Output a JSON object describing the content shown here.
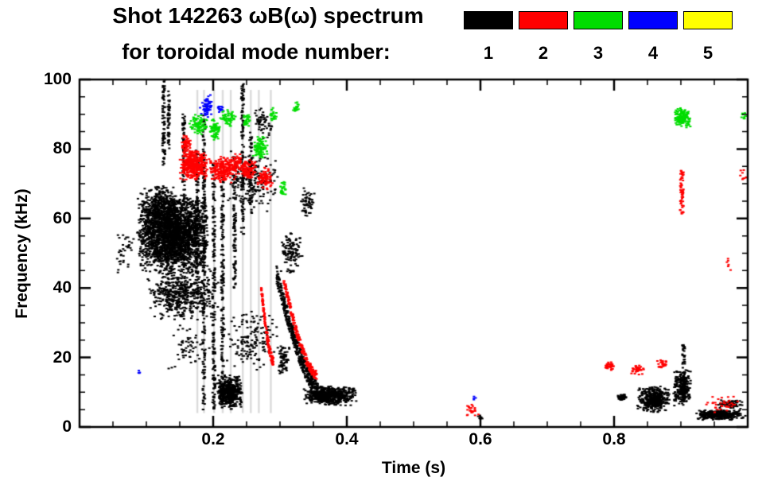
{
  "header": {
    "title_line1": "Shot 142263 ωB(ω) spectrum",
    "title_line2": "for toroidal mode number:"
  },
  "legend": {
    "items": [
      {
        "label": "1",
        "color": "#000000"
      },
      {
        "label": "2",
        "color": "#ff0000"
      },
      {
        "label": "3",
        "color": "#00dd00"
      },
      {
        "label": "4",
        "color": "#0000ff"
      },
      {
        "label": "5",
        "color": "#ffff00"
      }
    ]
  },
  "chart_data": {
    "type": "scatter",
    "subtype": "mode-number-spectrogram",
    "title": "Shot 142263 ωB(ω) spectrum for toroidal mode number 1-5",
    "xlabel": "Time (s)",
    "ylabel": "Frequency (kHz)",
    "xlim": [
      0,
      1.0
    ],
    "ylim": [
      0,
      100
    ],
    "x_ticks": [
      {
        "v": 0.2,
        "label": "0.2"
      },
      {
        "v": 0.4,
        "label": "0.4"
      },
      {
        "v": 0.6,
        "label": "0.6"
      },
      {
        "v": 0.8,
        "label": "0.8"
      }
    ],
    "y_ticks": [
      {
        "v": 0,
        "label": "0"
      },
      {
        "v": 20,
        "label": "20"
      },
      {
        "v": 40,
        "label": "40"
      },
      {
        "v": 60,
        "label": "60"
      },
      {
        "v": 80,
        "label": "80"
      },
      {
        "v": 100,
        "label": "100"
      }
    ],
    "x_minor_step": 0.05,
    "y_minor_step": 5,
    "grid": false,
    "legend_position": "top-right-above-plot",
    "background_stripes": {
      "color": "#dcdcdc",
      "f": [
        4,
        97
      ],
      "t": [
        0.176,
        0.186,
        0.201,
        0.214,
        0.226,
        0.244,
        0.256,
        0.268,
        0.286
      ]
    },
    "series": [
      {
        "name": "n=1",
        "mode": 1,
        "color": "#000000",
        "clusters": [
          {
            "shape": "blob",
            "t": [
              0.05,
              0.085
            ],
            "f": [
              44,
              56
            ],
            "n": 35
          },
          {
            "shape": "blob",
            "t": [
              0.085,
              0.195
            ],
            "f": [
              44,
              67
            ],
            "n": 2600
          },
          {
            "shape": "blob",
            "t": [
              0.1,
              0.21
            ],
            "f": [
              30,
              47
            ],
            "n": 520
          },
          {
            "shape": "blob",
            "t": [
              0.09,
              0.15
            ],
            "f": [
              56,
              70
            ],
            "n": 350
          },
          {
            "shape": "blob",
            "t": [
              0.13,
              0.2
            ],
            "f": [
              15,
              30
            ],
            "n": 60
          },
          {
            "shape": "vline",
            "t": [
              0.124,
              0.128
            ],
            "f": [
              75,
              100
            ],
            "n": 80
          },
          {
            "shape": "vline",
            "t": [
              0.132,
              0.135
            ],
            "f": [
              80,
              97
            ],
            "n": 50
          },
          {
            "shape": "vline",
            "t": [
              0.154,
              0.158
            ],
            "f": [
              62,
              90
            ],
            "n": 80
          },
          {
            "shape": "vline",
            "t": [
              0.174,
              0.178
            ],
            "f": [
              38,
              80
            ],
            "n": 100
          },
          {
            "shape": "vline",
            "t": [
              0.184,
              0.188
            ],
            "f": [
              5,
              93
            ],
            "n": 200
          },
          {
            "shape": "vline",
            "t": [
              0.199,
              0.203
            ],
            "f": [
              5,
              76
            ],
            "n": 180
          },
          {
            "shape": "vline",
            "t": [
              0.212,
              0.216
            ],
            "f": [
              5,
              72
            ],
            "n": 160
          },
          {
            "shape": "vline",
            "t": [
              0.23,
              0.234
            ],
            "f": [
              40,
              78
            ],
            "n": 100
          },
          {
            "shape": "vline",
            "t": [
              0.242,
              0.246
            ],
            "f": [
              55,
              99
            ],
            "n": 110
          },
          {
            "shape": "vline",
            "t": [
              0.254,
              0.258
            ],
            "f": [
              60,
              85
            ],
            "n": 60
          },
          {
            "shape": "blob",
            "t": [
              0.205,
              0.245
            ],
            "f": [
              5,
              15
            ],
            "n": 480
          },
          {
            "shape": "blob",
            "t": [
              0.215,
              0.3
            ],
            "f": [
              16,
              34
            ],
            "n": 150
          },
          {
            "shape": "blob",
            "t": [
              0.22,
              0.3
            ],
            "f": [
              62,
              80
            ],
            "n": 190
          },
          {
            "shape": "blob",
            "t": [
              0.258,
              0.292
            ],
            "f": [
              83,
              92
            ],
            "n": 55
          },
          {
            "shape": "chirp",
            "t": [
              0.295,
              0.365
            ],
            "f": [
              9,
              44
            ],
            "n": 520,
            "th": 5
          },
          {
            "shape": "blob",
            "t": [
              0.335,
              0.415
            ],
            "f": [
              6,
              12
            ],
            "n": 620
          },
          {
            "shape": "blob",
            "t": [
              0.3,
              0.335
            ],
            "f": [
              44,
              57
            ],
            "n": 110
          },
          {
            "shape": "blob",
            "t": [
              0.295,
              0.315
            ],
            "f": [
              15,
              24
            ],
            "n": 80
          },
          {
            "shape": "blob",
            "t": [
              0.33,
              0.352
            ],
            "f": [
              60,
              69
            ],
            "n": 55
          },
          {
            "shape": "blob",
            "t": [
              0.595,
              0.605
            ],
            "f": [
              1.5,
              4
            ],
            "n": 8
          },
          {
            "shape": "blob",
            "t": [
              0.805,
              0.818
            ],
            "f": [
              7.5,
              9.5
            ],
            "n": 50
          },
          {
            "shape": "blob",
            "t": [
              0.835,
              0.885
            ],
            "f": [
              4,
              12
            ],
            "n": 430
          },
          {
            "shape": "blob",
            "t": [
              0.888,
              0.916
            ],
            "f": [
              6,
              17
            ],
            "n": 240
          },
          {
            "shape": "vline",
            "t": [
              0.902,
              0.906
            ],
            "f": [
              7,
              24
            ],
            "n": 60
          },
          {
            "shape": "blob",
            "t": [
              0.92,
              0.998
            ],
            "f": [
              2,
              5
            ],
            "n": 380
          },
          {
            "shape": "blob",
            "t": [
              0.955,
              0.995
            ],
            "f": [
              5,
              8
            ],
            "n": 70
          }
        ]
      },
      {
        "name": "n=2",
        "mode": 2,
        "color": "#ff0000",
        "clusters": [
          {
            "shape": "blob",
            "t": [
              0.148,
              0.192
            ],
            "f": [
              71,
              80
            ],
            "n": 400
          },
          {
            "shape": "blob",
            "t": [
              0.192,
              0.238
            ],
            "f": [
              70,
              78
            ],
            "n": 240
          },
          {
            "shape": "blob",
            "t": [
              0.238,
              0.265
            ],
            "f": [
              71,
              77
            ],
            "n": 110
          },
          {
            "shape": "blob",
            "t": [
              0.265,
              0.29
            ],
            "f": [
              68,
              75
            ],
            "n": 80
          },
          {
            "shape": "blob",
            "t": [
              0.152,
              0.168
            ],
            "f": [
              79,
              84
            ],
            "n": 55
          },
          {
            "shape": "blob",
            "t": [
              0.225,
              0.245
            ],
            "f": [
              74,
              79
            ],
            "n": 50
          },
          {
            "shape": "chirp",
            "t": [
              0.272,
              0.29
            ],
            "f": [
              19,
              40
            ],
            "n": 150,
            "th": 2.5
          },
          {
            "shape": "chirp",
            "t": [
              0.305,
              0.355
            ],
            "f": [
              15,
              43
            ],
            "n": 240,
            "th": 2.5
          },
          {
            "shape": "blob",
            "t": [
              0.578,
              0.6
            ],
            "f": [
              3,
              8
            ],
            "n": 22
          },
          {
            "shape": "blob",
            "t": [
              0.785,
              0.802
            ],
            "f": [
              16,
              19
            ],
            "n": 36
          },
          {
            "shape": "blob",
            "t": [
              0.825,
              0.846
            ],
            "f": [
              15,
              18
            ],
            "n": 36
          },
          {
            "shape": "blob",
            "t": [
              0.862,
              0.88
            ],
            "f": [
              16.5,
              19.5
            ],
            "n": 26
          },
          {
            "shape": "vline",
            "t": [
              0.899,
              0.904
            ],
            "f": [
              61,
              74
            ],
            "n": 55
          },
          {
            "shape": "blob",
            "t": [
              0.988,
              1.0
            ],
            "f": [
              70,
              75
            ],
            "n": 10
          },
          {
            "shape": "blob",
            "t": [
              0.93,
              0.995
            ],
            "f": [
              4,
              9
            ],
            "n": 35
          },
          {
            "shape": "blob",
            "t": [
              0.966,
              0.976
            ],
            "f": [
              45,
              49
            ],
            "n": 6
          }
        ]
      },
      {
        "name": "n=3",
        "mode": 3,
        "color": "#00dd00",
        "clusters": [
          {
            "shape": "blob",
            "t": [
              0.163,
              0.193
            ],
            "f": [
              84,
              90
            ],
            "n": 85
          },
          {
            "shape": "blob",
            "t": [
              0.193,
              0.212
            ],
            "f": [
              82,
              89
            ],
            "n": 75
          },
          {
            "shape": "blob",
            "t": [
              0.212,
              0.235
            ],
            "f": [
              86,
              92
            ],
            "n": 55
          },
          {
            "shape": "blob",
            "t": [
              0.243,
              0.258
            ],
            "f": [
              86,
              90
            ],
            "n": 32
          },
          {
            "shape": "blob",
            "t": [
              0.258,
              0.282
            ],
            "f": [
              77,
              84
            ],
            "n": 100
          },
          {
            "shape": "blob",
            "t": [
              0.284,
              0.296
            ],
            "f": [
              88,
              92
            ],
            "n": 26
          },
          {
            "shape": "blob",
            "t": [
              0.318,
              0.33
            ],
            "f": [
              90,
              94
            ],
            "n": 22
          },
          {
            "shape": "blob",
            "t": [
              0.298,
              0.31
            ],
            "f": [
              66,
              71
            ],
            "n": 26
          },
          {
            "shape": "blob",
            "t": [
              0.89,
              0.916
            ],
            "f": [
              86,
              92
            ],
            "n": 150
          },
          {
            "shape": "blob",
            "t": [
              0.99,
              1.0
            ],
            "f": [
              88,
              91
            ],
            "n": 9
          }
        ]
      },
      {
        "name": "n=4",
        "mode": 4,
        "color": "#0000ff",
        "clusters": [
          {
            "shape": "blob",
            "t": [
              0.18,
              0.202
            ],
            "f": [
              89,
              96
            ],
            "n": 65
          },
          {
            "shape": "blob",
            "t": [
              0.206,
              0.215
            ],
            "f": [
              90,
              93
            ],
            "n": 12
          },
          {
            "shape": "blob",
            "t": [
              0.588,
              0.595
            ],
            "f": [
              7,
              9
            ],
            "n": 4
          },
          {
            "shape": "blob",
            "t": [
              0.087,
              0.093
            ],
            "f": [
              15,
              17
            ],
            "n": 4
          }
        ]
      },
      {
        "name": "n=5",
        "mode": 5,
        "color": "#ffff00",
        "clusters": []
      }
    ]
  }
}
